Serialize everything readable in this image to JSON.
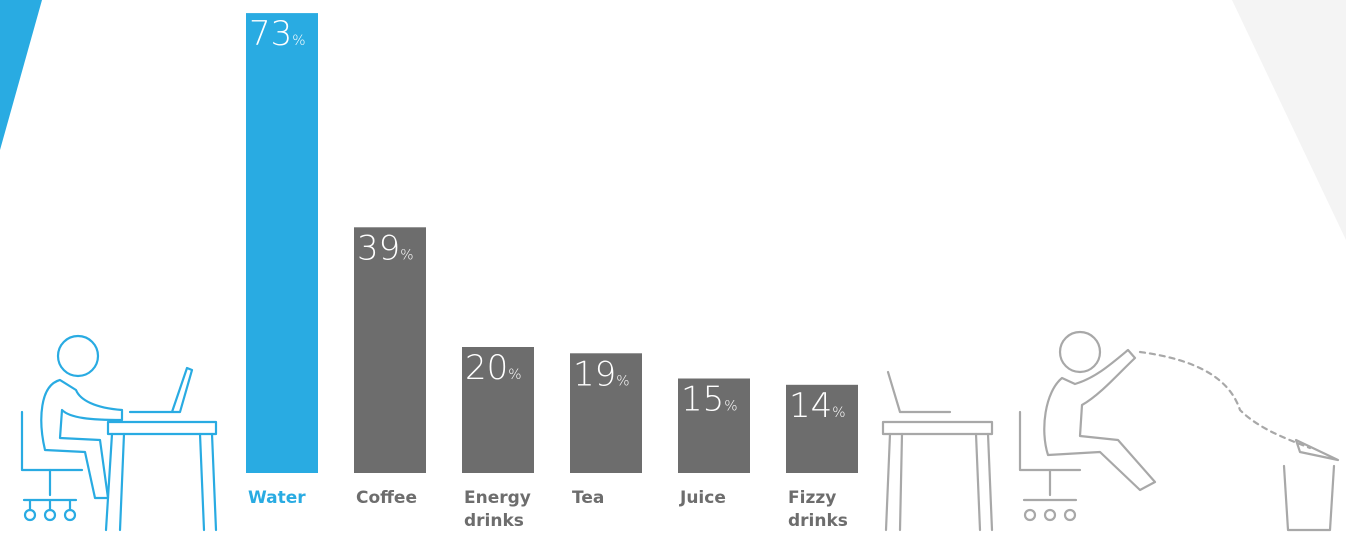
{
  "chart_data": {
    "type": "bar",
    "categories": [
      "Water",
      "Coffee",
      "Energy drinks",
      "Tea",
      "Juice",
      "Fizzy drinks"
    ],
    "values": [
      73,
      39,
      20,
      19,
      15,
      14
    ],
    "value_labels": [
      "73%",
      "39%",
      "20%",
      "19%",
      "15%",
      "14%"
    ],
    "colors": [
      "#29abe2",
      "#6d6d6d",
      "#6d6d6d",
      "#6d6d6d",
      "#6d6d6d",
      "#6d6d6d"
    ],
    "label_colors": [
      "#29abe2",
      "#6d6d6d",
      "#6d6d6d",
      "#6d6d6d",
      "#6d6d6d",
      "#6d6d6d"
    ]
  }
}
